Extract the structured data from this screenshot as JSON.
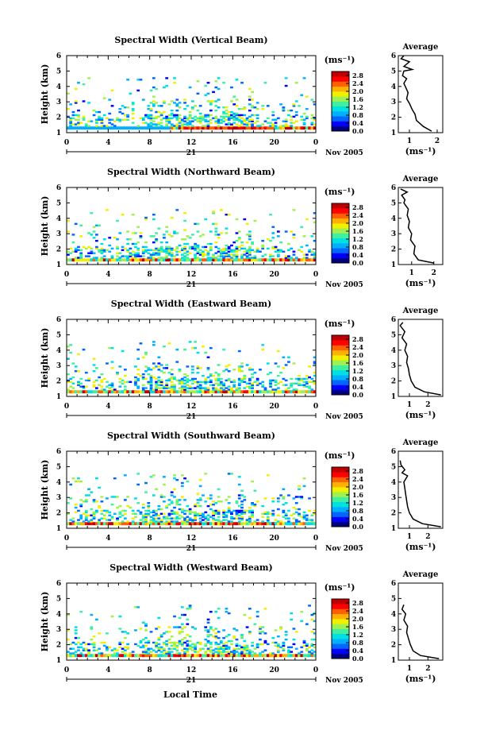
{
  "figure": {
    "xlabel": "Local Time",
    "date_label": "Nov 2005",
    "day_label": "21",
    "ylabel": "Height (km)",
    "cbar_unit": "(ms⁻¹)",
    "avg_title": "Average",
    "avg_xlabel": "(ms⁻¹)"
  },
  "colors": {
    "scale": [
      "#00007f",
      "#0000ff",
      "#0066ff",
      "#00b0ff",
      "#00e0e0",
      "#40f0a0",
      "#a0f050",
      "#f0f000",
      "#ffb000",
      "#ff6000",
      "#ff0000",
      "#c00000"
    ]
  },
  "chart_data": [
    {
      "type": "heatmap",
      "title": "Spectral Width (Vertical Beam)",
      "x_ticks": [
        "0",
        "4",
        "8",
        "12",
        "16",
        "20",
        "0"
      ],
      "y_ticks": [
        "1",
        "2",
        "3",
        "4",
        "5",
        "6"
      ],
      "xlim": [
        0,
        24
      ],
      "ylim": [
        1,
        6
      ],
      "cbar_ticks": [
        "0.0",
        "0.4",
        "0.8",
        "1.2",
        "1.6",
        "2.0",
        "2.4",
        "2.8"
      ],
      "cbar_range": [
        0,
        3.0
      ],
      "avg": {
        "x_ticks": [
          "1",
          "2"
        ],
        "xlim": [
          0.6,
          2.2
        ],
        "profile": [
          [
            1.8,
            1.1
          ],
          [
            1.5,
            1.4
          ],
          [
            1.25,
            1.8
          ],
          [
            1.2,
            2.2
          ],
          [
            1.1,
            2.5
          ],
          [
            1.0,
            2.9
          ],
          [
            0.9,
            3.2
          ],
          [
            0.95,
            3.6
          ],
          [
            0.85,
            4.0
          ],
          [
            0.8,
            4.2
          ],
          [
            0.9,
            4.5
          ],
          [
            0.75,
            4.7
          ],
          [
            0.8,
            5.0
          ],
          [
            1.1,
            5.1
          ],
          [
            0.8,
            5.3
          ],
          [
            1.0,
            5.6
          ],
          [
            0.7,
            5.8
          ],
          [
            0.8,
            6.0
          ]
        ]
      }
    },
    {
      "type": "heatmap",
      "title": "Spectral Width (Northward Beam)",
      "x_ticks": [
        "0",
        "4",
        "8",
        "12",
        "16",
        "20",
        "0"
      ],
      "y_ticks": [
        "1",
        "2",
        "3",
        "4",
        "5",
        "6"
      ],
      "xlim": [
        0,
        24
      ],
      "ylim": [
        1,
        6
      ],
      "cbar_ticks": [
        "0.0",
        "0.4",
        "0.8",
        "1.2",
        "1.6",
        "2.0",
        "2.4",
        "2.8"
      ],
      "cbar_range": [
        0,
        3.0
      ],
      "avg": {
        "x_ticks": [
          "1",
          "2"
        ],
        "xlim": [
          0.4,
          2.4
        ],
        "profile": [
          [
            2.0,
            1.1
          ],
          [
            1.3,
            1.3
          ],
          [
            1.1,
            1.7
          ],
          [
            1.15,
            2.2
          ],
          [
            0.95,
            2.6
          ],
          [
            1.0,
            3.0
          ],
          [
            0.85,
            3.4
          ],
          [
            0.9,
            3.8
          ],
          [
            0.8,
            4.2
          ],
          [
            0.85,
            4.6
          ],
          [
            0.65,
            5.0
          ],
          [
            0.7,
            5.2
          ],
          [
            0.55,
            5.5
          ],
          [
            0.8,
            5.7
          ],
          [
            0.5,
            5.9
          ]
        ]
      }
    },
    {
      "type": "heatmap",
      "title": "Spectral Width (Eastward Beam)",
      "x_ticks": [
        "0",
        "4",
        "8",
        "12",
        "16",
        "20",
        "0"
      ],
      "y_ticks": [
        "1",
        "2",
        "3",
        "4",
        "5",
        "6"
      ],
      "xlim": [
        0,
        24
      ],
      "ylim": [
        1,
        6
      ],
      "cbar_ticks": [
        "0.0",
        "0.4",
        "0.8",
        "1.2",
        "1.6",
        "2.0",
        "2.4",
        "2.8"
      ],
      "cbar_range": [
        0,
        3.0
      ],
      "avg": {
        "x_ticks": [
          "1",
          "2"
        ],
        "xlim": [
          0.4,
          2.8
        ],
        "profile": [
          [
            2.7,
            1.1
          ],
          [
            1.8,
            1.3
          ],
          [
            1.3,
            1.6
          ],
          [
            1.1,
            2.0
          ],
          [
            1.0,
            2.4
          ],
          [
            0.95,
            2.8
          ],
          [
            0.85,
            3.2
          ],
          [
            0.9,
            3.6
          ],
          [
            0.75,
            4.0
          ],
          [
            0.85,
            4.4
          ],
          [
            0.6,
            4.8
          ],
          [
            0.75,
            5.2
          ],
          [
            0.5,
            5.6
          ],
          [
            0.65,
            5.8
          ]
        ]
      }
    },
    {
      "type": "heatmap",
      "title": "Spectral Width (Southward Beam)",
      "x_ticks": [
        "0",
        "4",
        "8",
        "12",
        "16",
        "20",
        "0"
      ],
      "y_ticks": [
        "1",
        "2",
        "3",
        "4",
        "5",
        "6"
      ],
      "xlim": [
        0,
        24
      ],
      "ylim": [
        1,
        6
      ],
      "cbar_ticks": [
        "0.0",
        "0.4",
        "0.8",
        "1.2",
        "1.6",
        "2.0",
        "2.4",
        "2.8"
      ],
      "cbar_range": [
        0,
        3.0
      ],
      "avg": {
        "x_ticks": [
          "1",
          "2"
        ],
        "xlim": [
          0.4,
          2.8
        ],
        "profile": [
          [
            2.7,
            1.1
          ],
          [
            1.7,
            1.3
          ],
          [
            1.2,
            1.6
          ],
          [
            1.0,
            2.0
          ],
          [
            0.9,
            2.4
          ],
          [
            0.85,
            2.8
          ],
          [
            0.8,
            3.2
          ],
          [
            0.75,
            3.6
          ],
          [
            0.7,
            4.0
          ],
          [
            0.9,
            4.4
          ],
          [
            0.6,
            4.6
          ],
          [
            0.75,
            4.8
          ],
          [
            0.55,
            5.1
          ],
          [
            0.5,
            5.4
          ]
        ]
      }
    },
    {
      "type": "heatmap",
      "title": "Spectral Width (Westward Beam)",
      "x_ticks": [
        "0",
        "4",
        "8",
        "12",
        "16",
        "20",
        "0"
      ],
      "y_ticks": [
        "1",
        "2",
        "3",
        "4",
        "5",
        "6"
      ],
      "xlim": [
        0,
        24
      ],
      "ylim": [
        1,
        6
      ],
      "cbar_ticks": [
        "0.0",
        "0.4",
        "0.8",
        "1.2",
        "1.6",
        "2.0",
        "2.4",
        "2.8"
      ],
      "cbar_range": [
        0,
        3.0
      ],
      "avg": {
        "x_ticks": [
          "1",
          "2"
        ],
        "xlim": [
          0.4,
          2.8
        ],
        "profile": [
          [
            2.6,
            1.1
          ],
          [
            1.6,
            1.3
          ],
          [
            1.2,
            1.6
          ],
          [
            1.05,
            2.0
          ],
          [
            0.95,
            2.4
          ],
          [
            0.85,
            2.8
          ],
          [
            0.9,
            3.2
          ],
          [
            0.7,
            3.6
          ],
          [
            0.8,
            4.0
          ],
          [
            0.6,
            4.3
          ],
          [
            0.7,
            4.6
          ]
        ]
      }
    }
  ]
}
